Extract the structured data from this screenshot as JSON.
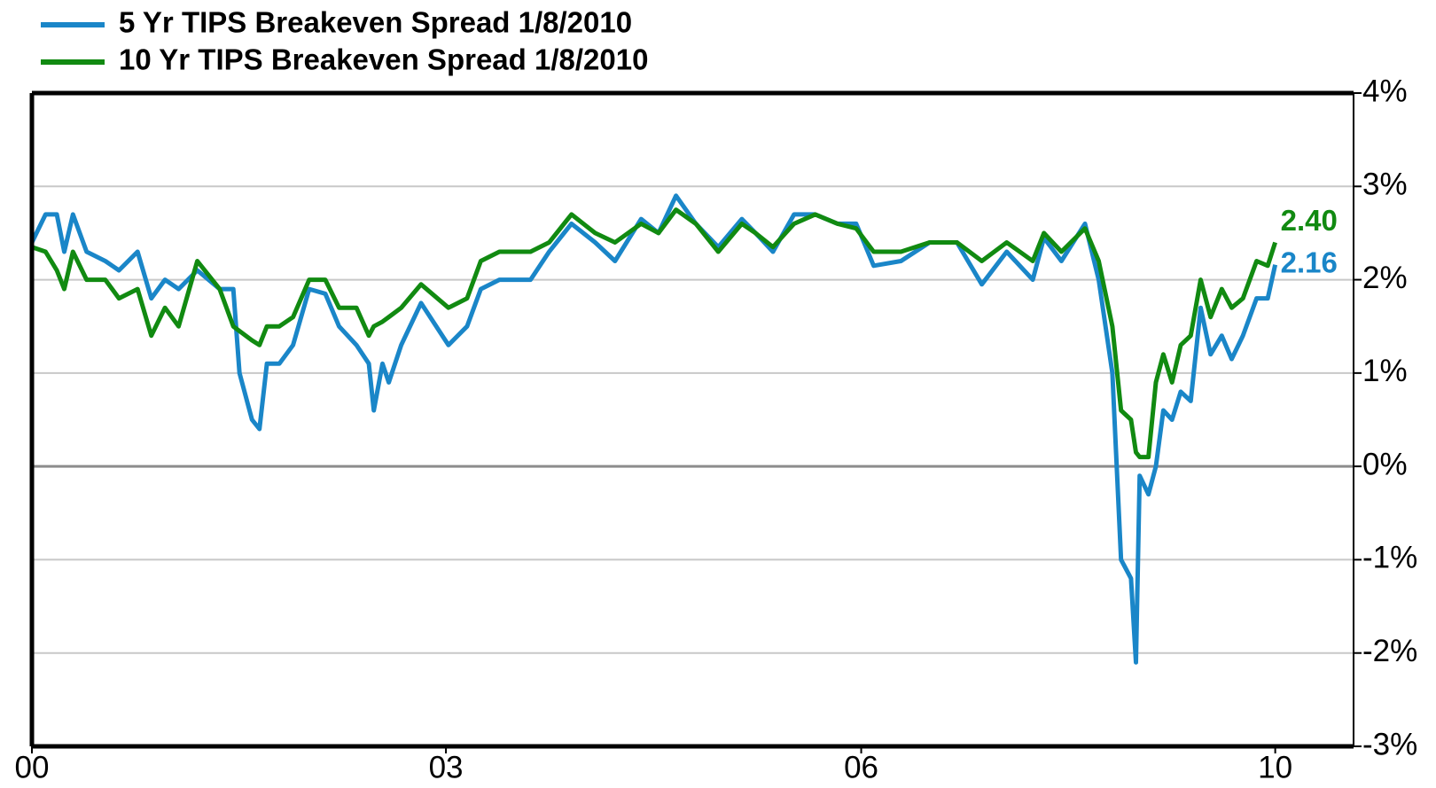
{
  "chart_data": {
    "type": "line",
    "x": [
      2000.0,
      2000.11,
      2000.2,
      2000.26,
      2000.33,
      2000.44,
      2000.59,
      2000.7,
      2000.85,
      2000.96,
      2001.07,
      2001.18,
      2001.33,
      2001.51,
      2001.62,
      2001.67,
      2001.77,
      2001.83,
      2001.89,
      2001.99,
      2002.1,
      2002.23,
      2002.36,
      2002.47,
      2002.61,
      2002.71,
      2002.75,
      2002.82,
      2002.87,
      2002.97,
      2003.13,
      2003.35,
      2003.5,
      2003.61,
      2003.76,
      2004.01,
      2004.16,
      2004.34,
      2004.53,
      2004.69,
      2004.9,
      2005.04,
      2005.18,
      2005.34,
      2005.52,
      2005.71,
      2005.82,
      2005.96,
      2006.13,
      2006.3,
      2006.48,
      2006.63,
      2006.77,
      2006.99,
      2007.22,
      2007.44,
      2007.64,
      2007.84,
      2008.05,
      2008.14,
      2008.28,
      2008.47,
      2008.58,
      2008.69,
      2008.76,
      2008.84,
      2008.88,
      2008.91,
      2008.98,
      2009.04,
      2009.1,
      2009.17,
      2009.24,
      2009.32,
      2009.4,
      2009.48,
      2009.57,
      2009.65,
      2009.74,
      2009.85,
      2009.94,
      2010.0
    ],
    "series": [
      {
        "name": "5 Yr TIPS Breakeven Spread 1/8/2010",
        "color": "#1a86c8",
        "values": [
          2.4,
          2.7,
          2.7,
          2.3,
          2.7,
          2.3,
          2.2,
          2.1,
          2.3,
          1.8,
          2.0,
          1.9,
          2.1,
          1.9,
          1.9,
          1.0,
          0.5,
          0.4,
          1.1,
          1.1,
          1.3,
          1.9,
          1.85,
          1.5,
          1.3,
          1.1,
          0.6,
          1.1,
          0.9,
          1.3,
          1.75,
          1.3,
          1.5,
          1.9,
          2.0,
          2.0,
          2.3,
          2.6,
          2.4,
          2.2,
          2.65,
          2.5,
          2.9,
          2.6,
          2.35,
          2.65,
          2.5,
          2.3,
          2.7,
          2.7,
          2.6,
          2.6,
          2.15,
          2.2,
          2.4,
          2.4,
          1.95,
          2.3,
          2.0,
          2.45,
          2.2,
          2.6,
          2.0,
          1.0,
          -1.0,
          -1.2,
          -2.1,
          -0.1,
          -0.3,
          0.0,
          0.6,
          0.5,
          0.8,
          0.7,
          1.7,
          1.2,
          1.4,
          1.15,
          1.4,
          1.8,
          1.8,
          2.16
        ],
        "value_labels": [
          null,
          null,
          null,
          null,
          null,
          null,
          null,
          null,
          null,
          null,
          null,
          null,
          null,
          null,
          null,
          null,
          null,
          null,
          null,
          null,
          null,
          null,
          null,
          null,
          null,
          null,
          null,
          null,
          null,
          null,
          null,
          null,
          null,
          null,
          null,
          null,
          null,
          null,
          null,
          null,
          null,
          null,
          null,
          null,
          null,
          null,
          null,
          null,
          null,
          null,
          null,
          null,
          null,
          null,
          null,
          null,
          null,
          null,
          null,
          null,
          null,
          null,
          null,
          null,
          null,
          null,
          null,
          null,
          null,
          null,
          null,
          null,
          null,
          null,
          null,
          null,
          null,
          null,
          null,
          null,
          null,
          "2.16"
        ]
      },
      {
        "name": "10 Yr TIPS Breakeven Spread 1/8/2010",
        "color": "#118a11",
        "values": [
          2.35,
          2.3,
          2.1,
          1.9,
          2.3,
          2.0,
          2.0,
          1.8,
          1.9,
          1.4,
          1.7,
          1.5,
          2.2,
          1.9,
          1.5,
          1.45,
          1.35,
          1.3,
          1.5,
          1.5,
          1.6,
          2.0,
          2.0,
          1.7,
          1.7,
          1.4,
          1.5,
          1.55,
          1.6,
          1.7,
          1.95,
          1.7,
          1.8,
          2.2,
          2.3,
          2.3,
          2.4,
          2.7,
          2.5,
          2.4,
          2.6,
          2.5,
          2.75,
          2.6,
          2.3,
          2.6,
          2.5,
          2.35,
          2.6,
          2.7,
          2.6,
          2.55,
          2.3,
          2.3,
          2.4,
          2.4,
          2.2,
          2.4,
          2.2,
          2.5,
          2.3,
          2.55,
          2.2,
          1.5,
          0.6,
          0.5,
          0.15,
          0.1,
          0.1,
          0.9,
          1.2,
          0.9,
          1.3,
          1.4,
          2.0,
          1.6,
          1.9,
          1.7,
          1.8,
          2.2,
          2.15,
          2.4
        ],
        "value_labels": [
          null,
          null,
          null,
          null,
          null,
          null,
          null,
          null,
          null,
          null,
          null,
          null,
          null,
          null,
          null,
          null,
          null,
          null,
          null,
          null,
          null,
          null,
          null,
          null,
          null,
          null,
          null,
          null,
          null,
          null,
          null,
          null,
          null,
          null,
          null,
          null,
          null,
          null,
          null,
          null,
          null,
          null,
          null,
          null,
          null,
          null,
          null,
          null,
          null,
          null,
          null,
          null,
          null,
          null,
          null,
          null,
          null,
          null,
          null,
          null,
          null,
          null,
          null,
          null,
          null,
          null,
          null,
          null,
          null,
          null,
          null,
          null,
          null,
          null,
          null,
          null,
          null,
          null,
          null,
          null,
          null,
          "2.40"
        ]
      }
    ],
    "xlim": [
      2000,
      2010.63
    ],
    "xticks": [
      {
        "value": 2000,
        "label": "00"
      },
      {
        "value": 2003.33,
        "label": "03"
      },
      {
        "value": 2006.67,
        "label": "06"
      },
      {
        "value": 2010,
        "label": "10"
      }
    ],
    "ylim": [
      -3,
      4
    ],
    "yticks": [
      {
        "value": -3,
        "label": "-3%"
      },
      {
        "value": -2,
        "label": "-2%"
      },
      {
        "value": -1,
        "label": "-1%"
      },
      {
        "value": 0,
        "label": "0%"
      },
      {
        "value": 1,
        "label": "1%"
      },
      {
        "value": 2,
        "label": "2%"
      },
      {
        "value": 3,
        "label": "3%"
      },
      {
        "value": 4,
        "label": "4%"
      }
    ],
    "grid": true,
    "legend": "top-left"
  }
}
